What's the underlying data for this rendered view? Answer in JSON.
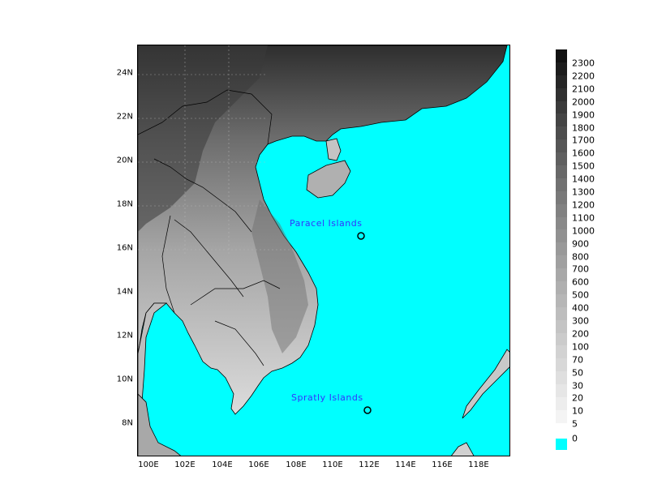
{
  "map": {
    "x_ticks": [
      "100E",
      "102E",
      "104E",
      "106E",
      "108E",
      "110E",
      "112E",
      "114E",
      "116E",
      "118E"
    ],
    "y_ticks": [
      "24N",
      "22N",
      "20N",
      "18N",
      "16N",
      "14N",
      "12N",
      "10N",
      "8N"
    ],
    "places": [
      {
        "name": "Paracel Islands"
      },
      {
        "name": "Spratly Islands"
      }
    ],
    "ocean_color": "#00ffff"
  },
  "legend": {
    "levels": [
      "2300",
      "2200",
      "2100",
      "2000",
      "1900",
      "1800",
      "1700",
      "1600",
      "1500",
      "1400",
      "1300",
      "1200",
      "1100",
      "1000",
      "900",
      "800",
      "700",
      "600",
      "500",
      "400",
      "300",
      "200",
      "100",
      "70",
      "50",
      "30",
      "20",
      "10",
      "5"
    ],
    "colors": [
      "#111111",
      "#1c1c1c",
      "#262626",
      "#303030",
      "#3a3a3a",
      "#444444",
      "#4d4d4d",
      "#565656",
      "#5f5f5f",
      "#686868",
      "#717171",
      "#797979",
      "#818181",
      "#898989",
      "#919191",
      "#999999",
      "#a0a0a0",
      "#a8a8a8",
      "#afafaf",
      "#b6b6b6",
      "#bdbdbd",
      "#c4c4c4",
      "#cbcbcb",
      "#d2d2d2",
      "#d8d8d8",
      "#dfdfdf",
      "#e6e6e6",
      "#ededed",
      "#f4f4f4"
    ],
    "zero_label": "0",
    "zero_color": "#00ffff"
  }
}
